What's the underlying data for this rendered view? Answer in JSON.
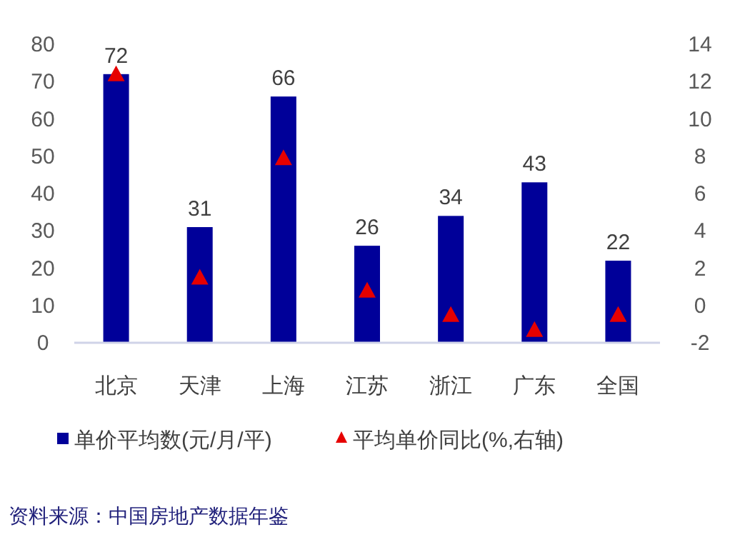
{
  "chart_data": {
    "type": "bar",
    "categories": [
      "北京",
      "天津",
      "上海",
      "江苏",
      "浙江",
      "广东",
      "全国"
    ],
    "series": [
      {
        "name": "单价平均数(元/月/平)",
        "color": "#000099",
        "values": [
          72,
          31,
          66,
          26,
          34,
          43,
          22
        ],
        "value_labels": [
          "72",
          "31",
          "66",
          "26",
          "34",
          "43",
          "22"
        ]
      },
      {
        "name": "平均单价同比(%,右轴)",
        "type": "scatter",
        "axis": "y2",
        "marker": "triangle",
        "color": "#e60000",
        "values": [
          12.4,
          1.5,
          7.9,
          0.8,
          -0.5,
          -1.3,
          -0.5
        ]
      }
    ],
    "ylim": [
      0,
      80
    ],
    "yticks": [
      0,
      10,
      20,
      30,
      40,
      50,
      60,
      70,
      80
    ],
    "y2lim": [
      -2,
      14
    ],
    "y2ticks": [
      -2,
      0,
      2,
      4,
      6,
      8,
      10,
      12,
      14
    ],
    "legend": "bottom",
    "grid": false,
    "annotations": [
      "资料来源：中国房地产数据年鉴"
    ]
  }
}
